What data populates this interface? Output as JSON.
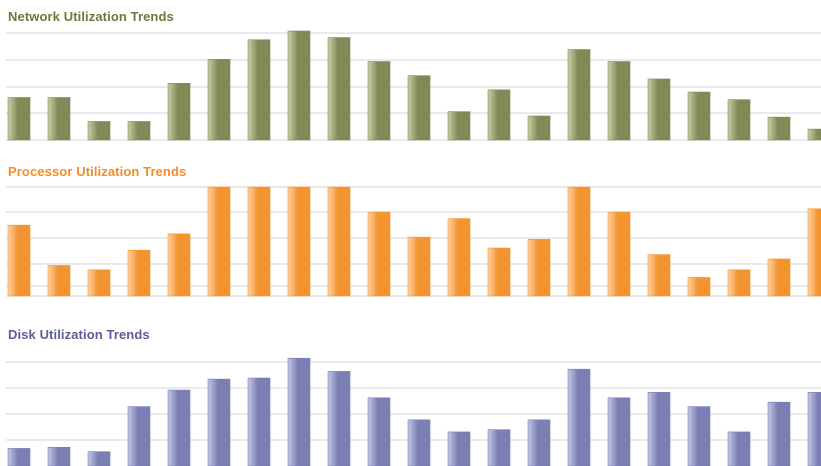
{
  "chart_data": [
    {
      "type": "bar",
      "title": "Network Utilization Trends",
      "color": "#7f8a57",
      "color_light": "#c9d0a8",
      "title_color": "#6b7a3a",
      "grid": true,
      "ylim": [
        0,
        100
      ],
      "values": [
        39,
        39,
        17,
        17,
        52,
        74,
        92,
        100,
        94,
        72,
        59,
        26,
        46,
        22,
        83,
        72,
        56,
        44,
        37,
        21,
        10
      ]
    },
    {
      "type": "bar",
      "title": "Processor Utilization Trends",
      "color": "#f49430",
      "color_light": "#fdd3a4",
      "title_color": "#f28c28",
      "grid": true,
      "ylim": [
        0,
        100
      ],
      "values": [
        65,
        28,
        24,
        42,
        57,
        100,
        100,
        100,
        100,
        77,
        54,
        71,
        44,
        52,
        100,
        77,
        38,
        17,
        24,
        34,
        80
      ]
    },
    {
      "type": "bar",
      "title": "Disk Utilization Trends",
      "color": "#7b7fb3",
      "color_light": "#c5c8e6",
      "title_color": "#5a5f95",
      "grid": true,
      "ylim": [
        0,
        100
      ],
      "values": [
        16,
        17,
        13,
        54,
        69,
        79,
        80,
        98,
        86,
        62,
        42,
        31,
        33,
        42,
        88,
        62,
        67,
        54,
        31,
        58,
        67
      ]
    }
  ]
}
